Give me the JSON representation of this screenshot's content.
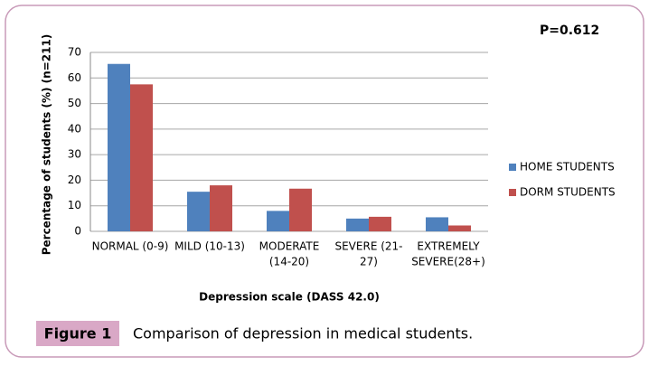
{
  "chart_data": {
    "type": "bar",
    "annotation": "P=0.612",
    "y_label": "Percentage of students (%) (n=211)",
    "x_label": "Depression scale (DASS 42.0)",
    "categories": [
      [
        "NORMAL (0-9)"
      ],
      [
        "MILD (10-13)"
      ],
      [
        "MODERATE",
        "(14-20)"
      ],
      [
        "SEVERE (21-",
        "27)"
      ],
      [
        "EXTREMELY",
        "SEVERE(28+)"
      ]
    ],
    "series": [
      {
        "name": "HOME STUDENTS",
        "color": "#4f81bd",
        "values": [
          65.5,
          15.5,
          8,
          5,
          5.5
        ]
      },
      {
        "name": "DORM STUDENTS",
        "color": "#c0504d",
        "values": [
          57.5,
          18,
          16.7,
          5.7,
          2.3
        ]
      }
    ],
    "ylim": [
      0,
      70
    ],
    "yticks": [
      0,
      10,
      20,
      30,
      40,
      50,
      60,
      70
    ],
    "grid": true,
    "legend": "right"
  },
  "caption": {
    "label": "Figure 1",
    "text": "Comparison of depression in medical students."
  }
}
